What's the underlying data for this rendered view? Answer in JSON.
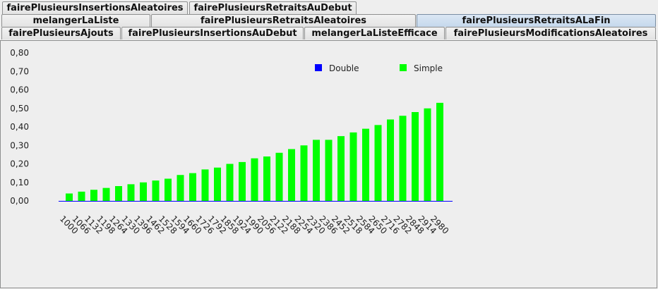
{
  "tabs": {
    "row1": [
      {
        "label": "fairePlusieursInsertionsAleatoires"
      },
      {
        "label": "fairePlusieursRetraitsAuDebut"
      }
    ],
    "row2": [
      {
        "label": "melangerLaListe"
      },
      {
        "label": "fairePlusieursRetraitsAleatoires"
      },
      {
        "label": "fairePlusieursRetraitsALaFin",
        "selected": true
      }
    ],
    "row3": [
      {
        "label": "fairePlusieursAjouts"
      },
      {
        "label": "fairePlusieursInsertionsAuDebut"
      },
      {
        "label": "melangerLaListeEfficace"
      },
      {
        "label": "fairePlusieursModificationsAleatoires"
      }
    ]
  },
  "chart_data": {
    "type": "bar",
    "categories": [
      "1000",
      "1066",
      "1132",
      "1198",
      "1264",
      "1330",
      "1396",
      "1462",
      "1528",
      "1594",
      "1660",
      "1726",
      "1792",
      "1858",
      "1924",
      "1990",
      "2056",
      "2122",
      "2188",
      "2254",
      "2320",
      "2386",
      "2452",
      "2518",
      "2584",
      "2650",
      "2716",
      "2782",
      "2848",
      "2914",
      "2980"
    ],
    "series": [
      {
        "name": "Double",
        "color": "#0000ff",
        "values": [
          0,
          0,
          0,
          0,
          0,
          0,
          0,
          0,
          0,
          0,
          0,
          0,
          0,
          0,
          0,
          0,
          0,
          0,
          0,
          0,
          0,
          0,
          0,
          0,
          0,
          0,
          0,
          0,
          0,
          0,
          0
        ]
      },
      {
        "name": "Simple",
        "color": "#00ff00",
        "values": [
          0.04,
          0.05,
          0.06,
          0.07,
          0.08,
          0.09,
          0.1,
          0.11,
          0.12,
          0.14,
          0.15,
          0.17,
          0.18,
          0.2,
          0.21,
          0.23,
          0.24,
          0.26,
          0.28,
          0.3,
          0.33,
          0.33,
          0.35,
          0.37,
          0.39,
          0.41,
          0.44,
          0.46,
          0.48,
          0.5,
          0.53
        ]
      }
    ],
    "yticks": [
      "0,00",
      "0,10",
      "0,20",
      "0,30",
      "0,40",
      "0,50",
      "0,60",
      "0,70",
      "0,80"
    ],
    "ylim": [
      0,
      0.8
    ],
    "legend_position": "top-right",
    "grid": false
  }
}
